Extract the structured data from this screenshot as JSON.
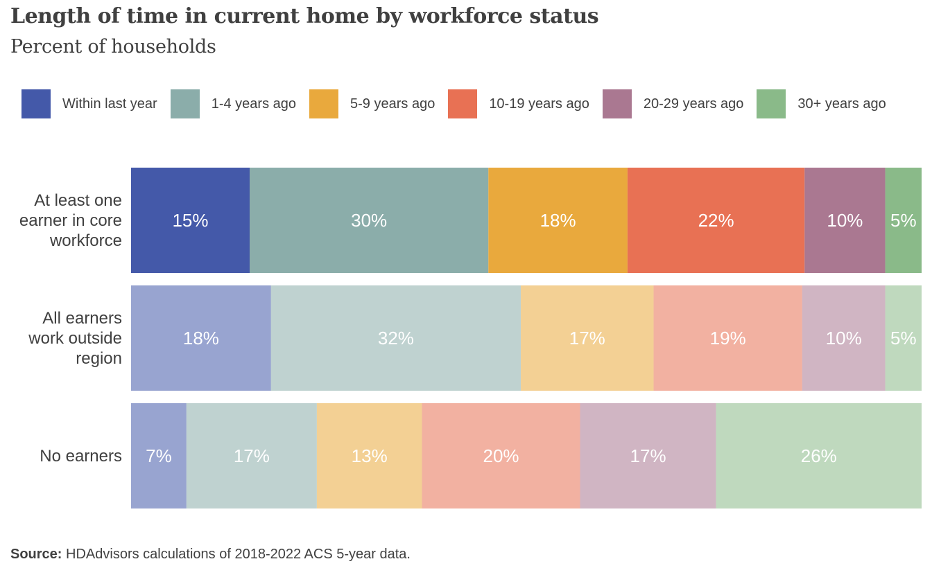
{
  "chart_data": {
    "type": "bar",
    "orientation": "horizontal",
    "stacked": true,
    "title": "Length of time in current home by workforce status",
    "subtitle": "Percent of households",
    "legend_position": "top",
    "grid": false,
    "xlim": [
      0,
      1
    ],
    "categories": [
      [
        "At least one",
        "earner in core",
        "workforce"
      ],
      [
        "All earners",
        "work outside",
        "region"
      ],
      [
        "No earners"
      ]
    ],
    "category_opacity": [
      1,
      0.55,
      0.55
    ],
    "series": [
      {
        "name": "Within last year",
        "color": "#4459a9",
        "values": [
          0.15,
          0.177,
          0.07
        ],
        "labels": [
          "15%",
          "18%",
          "7%"
        ]
      },
      {
        "name": "1-4 years ago",
        "color": "#8badaa",
        "values": [
          0.302,
          0.316,
          0.165
        ],
        "labels": [
          "30%",
          "32%",
          "17%"
        ]
      },
      {
        "name": "5-9 years ago",
        "color": "#e9a93d",
        "values": [
          0.176,
          0.168,
          0.133
        ],
        "labels": [
          "18%",
          "17%",
          "13%"
        ]
      },
      {
        "name": "10-19 years ago",
        "color": "#e87154",
        "values": [
          0.224,
          0.188,
          0.2
        ],
        "labels": [
          "22%",
          "19%",
          "20%"
        ]
      },
      {
        "name": "20-29 years ago",
        "color": "#aa7891",
        "values": [
          0.102,
          0.105,
          0.172
        ],
        "labels": [
          "10%",
          "10%",
          "17%"
        ]
      },
      {
        "name": "30+ years ago",
        "color": "#8aba89",
        "values": [
          0.046,
          0.046,
          0.26
        ],
        "labels": [
          "5%",
          "5%",
          "26%"
        ]
      }
    ]
  },
  "source": {
    "label": "Source:",
    "text": " HDAdvisors  calculations of 2018-2022  ACS 5-year  data."
  }
}
